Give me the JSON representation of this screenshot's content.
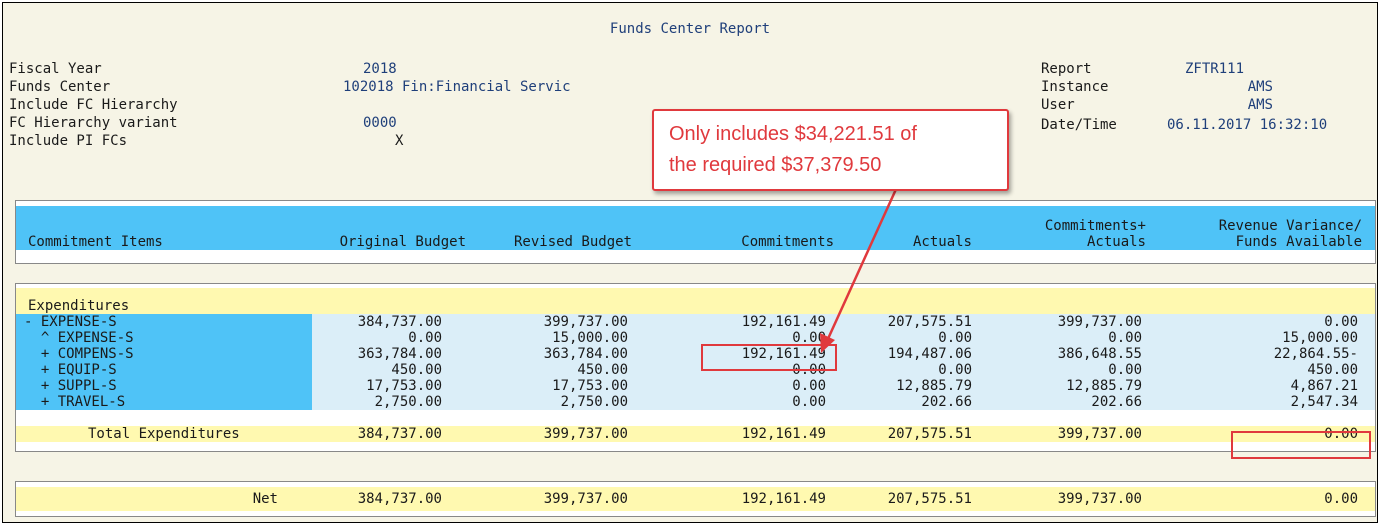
{
  "report": {
    "title": "Funds Center Report",
    "params": [
      {
        "label": "Fiscal Year",
        "value": "2018"
      },
      {
        "label": "Funds Center",
        "value": "102018 Fin:Financial Servic"
      },
      {
        "label": "Include FC Hierarchy",
        "value": ""
      },
      {
        "label": "FC Hierarchy variant",
        "value": "0000"
      },
      {
        "label": "Include PI FCs",
        "value": "X"
      }
    ],
    "info": [
      {
        "label": "Report",
        "value": "ZFTR111"
      },
      {
        "label": "Instance",
        "value": "AMS"
      },
      {
        "label": "User",
        "value": "AMS"
      },
      {
        "label": "Date/Time",
        "value": "06.11.2017 16:32:10"
      }
    ]
  },
  "callout": {
    "line1": "Only includes $34,221.51 of",
    "line2": "the required $37,379.50",
    "border_color": "#e0393d"
  },
  "table": {
    "headers_top": [
      "",
      "",
      "",
      "",
      "",
      "Commitments+",
      "Revenue Variance/"
    ],
    "headers": [
      "Commitment Items",
      "Original Budget",
      "Revised Budget",
      "Commitments",
      "Actuals",
      "Actuals",
      "Funds Available"
    ],
    "section_label": "Expenditures",
    "rows": [
      {
        "item": "- EXPENSE-S",
        "orig": "384,737.00",
        "rev": "399,737.00",
        "commit": "192,161.49",
        "actual": "207,575.51",
        "ca": "399,737.00",
        "fa": "0.00"
      },
      {
        "item": "  ^ EXPENSE-S",
        "orig": "0.00",
        "rev": "15,000.00",
        "commit": "0.00",
        "actual": "0.00",
        "ca": "0.00",
        "fa": "15,000.00"
      },
      {
        "item": "  + COMPENS-S",
        "orig": "363,784.00",
        "rev": "363,784.00",
        "commit": "192,161.49",
        "actual": "194,487.06",
        "ca": "386,648.55",
        "fa": "22,864.55-"
      },
      {
        "item": "  + EQUIP-S",
        "orig": "450.00",
        "rev": "450.00",
        "commit": "0.00",
        "actual": "0.00",
        "ca": "0.00",
        "fa": "450.00"
      },
      {
        "item": "  + SUPPL-S",
        "orig": "17,753.00",
        "rev": "17,753.00",
        "commit": "0.00",
        "actual": "12,885.79",
        "ca": "12,885.79",
        "fa": "4,867.21"
      },
      {
        "item": "  + TRAVEL-S",
        "orig": "2,750.00",
        "rev": "2,750.00",
        "commit": "0.00",
        "actual": "202.66",
        "ca": "202.66",
        "fa": "2,547.34"
      }
    ],
    "total": {
      "item": "Total Expenditures",
      "orig": "384,737.00",
      "rev": "399,737.00",
      "commit": "192,161.49",
      "actual": "207,575.51",
      "ca": "399,737.00",
      "fa": "0.00"
    },
    "net": {
      "item": "Net",
      "orig": "384,737.00",
      "rev": "399,737.00",
      "commit": "192,161.49",
      "actual": "207,575.51",
      "ca": "399,737.00",
      "fa": "0.00"
    }
  },
  "colors": {
    "header_blue": "#4fc3f7",
    "total_yellow": "#fff9b0",
    "row_blue": "#dbeef8",
    "highlight_red": "#e0393d"
  }
}
